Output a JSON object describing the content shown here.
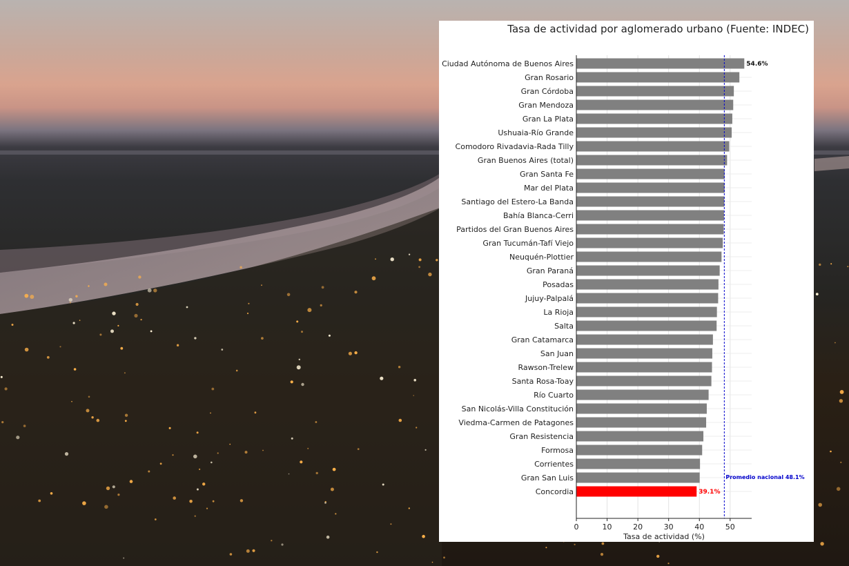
{
  "chart_data": {
    "type": "bar",
    "orientation": "horizontal",
    "title": "Tasa de actividad por aglomerado urbano (Fuente: INDEC)",
    "xlabel": "Tasa de actividad (%)",
    "ylabel": "",
    "xlim": [
      0,
      57
    ],
    "xticks": [
      "0",
      "10",
      "20",
      "30",
      "40",
      "50"
    ],
    "grid": "vertical",
    "categories": [
      "Ciudad Autónoma de Buenos Aires",
      "Gran Rosario",
      "Gran Córdoba",
      "Gran Mendoza",
      "Gran La Plata",
      "Ushuaia-Río Grande",
      "Comodoro Rivadavia-Rada Tilly",
      "Gran Buenos Aires (total)",
      "Gran Santa Fe",
      "Mar del Plata",
      "Santiago del Estero-La Banda",
      "Bahía Blanca-Cerri",
      "Partidos del Gran Buenos Aires",
      "Gran Tucumán-Tafí Viejo",
      "Neuquén-Plottier",
      "Gran Paraná",
      "Posadas",
      "Jujuy-Palpalá",
      "La Rioja",
      "Salta",
      "Gran Catamarca",
      "San Juan",
      "Rawson-Trelew",
      "Santa Rosa-Toay",
      "Río Cuarto",
      "San Nicolás-Villa Constitución",
      "Viedma-Carmen de Patagones",
      "Gran Resistencia",
      "Formosa",
      "Corrientes",
      "Gran San Luis",
      "Concordia"
    ],
    "values": [
      54.6,
      53.0,
      51.2,
      51.0,
      50.7,
      50.5,
      49.7,
      49.0,
      48.2,
      48.2,
      48.1,
      48.0,
      47.9,
      47.6,
      47.2,
      46.6,
      46.2,
      46.1,
      45.7,
      45.6,
      44.4,
      44.2,
      44.1,
      43.9,
      43.0,
      42.4,
      42.2,
      41.3,
      40.9,
      40.2,
      40.1,
      39.1
    ],
    "bar_color": "#808080",
    "highlight": {
      "category": "Concordia",
      "color": "#ff0000",
      "label": "39.1%"
    },
    "top_label": {
      "category": "Ciudad Autónoma de Buenos Aires",
      "label": "54.6%"
    },
    "reference_line": {
      "value": 48.1,
      "label": "Promedio nacional 48.1%",
      "color": "#0000cc",
      "style": "dashed"
    }
  }
}
